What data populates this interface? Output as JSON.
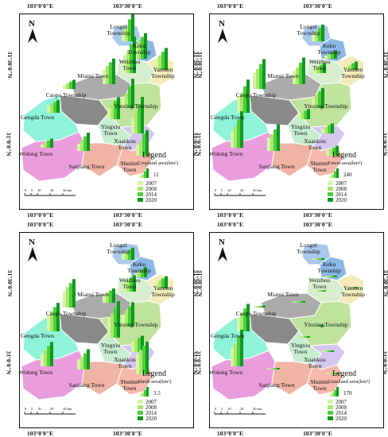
{
  "coordinates": {
    "lon_left": "103°0'0\"E",
    "lon_right": "103°30'0\"E",
    "lat_top": "31°30'0\"N",
    "lat_bottom": "31°0'0\"N"
  },
  "north_label": "N",
  "scale_bar": {
    "ticks": [
      "0",
      "5",
      "10",
      "20",
      "30 km"
    ]
  },
  "legend_years": [
    "2007",
    "2008",
    "2014",
    "2020"
  ],
  "panels": [
    {
      "legend_title": "Legend",
      "legend_subtitle": "Cropland area(km²)",
      "legend_value": "11",
      "towns": [
        {
          "name": "Longxi Township",
          "values": [
            3.0,
            4.0,
            6.0,
            8.0
          ]
        },
        {
          "name": "Keku Township",
          "values": [
            4.0,
            5.0,
            6.0,
            7.0
          ]
        },
        {
          "name": "Weizhou Town",
          "values": [
            5.0,
            6.0,
            8.0,
            10.0
          ]
        },
        {
          "name": "Yanmen Township",
          "values": [
            3.0,
            4.0,
            5.0,
            6.0
          ]
        },
        {
          "name": "Miansi Town",
          "values": [
            4.0,
            5.0,
            6.0,
            7.0
          ]
        },
        {
          "name": "Caopo Township",
          "values": [
            1.0,
            1.5,
            2.0,
            2.5
          ]
        },
        {
          "name": "Yinxing Township",
          "values": [
            3.0,
            4.0,
            6.0,
            8.0
          ]
        },
        {
          "name": "Gengda Town",
          "values": [
            2.0,
            2.5,
            3.0,
            3.5
          ]
        },
        {
          "name": "Yingxiu Town",
          "values": [
            3.0,
            4.0,
            5.0,
            6.0
          ]
        },
        {
          "name": "Xuankou Town",
          "values": [
            4.0,
            6.0,
            8.0,
            10.0
          ]
        },
        {
          "name": "Wolong Town",
          "values": [
            1.0,
            1.5,
            2.0,
            2.5
          ]
        },
        {
          "name": "Sanjiang Town",
          "values": [
            2.0,
            3.0,
            4.0,
            5.0
          ]
        },
        {
          "name": "Shuimo Town",
          "values": [
            3.0,
            4.0,
            6.0,
            7.0
          ]
        }
      ]
    },
    {
      "legend_title": "Legend",
      "legend_subtitle": "Forest area(km²)",
      "legend_value": "240",
      "towns": [
        {
          "name": "Longxi Township",
          "values": [
            40,
            60,
            80,
            100
          ]
        },
        {
          "name": "Keku Township",
          "values": [
            20,
            30,
            40,
            50
          ]
        },
        {
          "name": "Weizhou Town",
          "values": [
            30,
            40,
            50,
            60
          ]
        },
        {
          "name": "Yanmen Township",
          "values": [
            20,
            30,
            40,
            50
          ]
        },
        {
          "name": "Miansi Town",
          "values": [
            80,
            100,
            130,
            160
          ]
        },
        {
          "name": "Caopo Township",
          "values": [
            100,
            120,
            150,
            180
          ]
        },
        {
          "name": "Yinxing Township",
          "values": [
            60,
            80,
            100,
            120
          ]
        },
        {
          "name": "Gengda Town",
          "values": [
            100,
            120,
            160,
            200
          ]
        },
        {
          "name": "Yingxiu Town",
          "values": [
            30,
            40,
            50,
            60
          ]
        },
        {
          "name": "Xuankou Town",
          "values": [
            30,
            40,
            50,
            60
          ]
        },
        {
          "name": "Wolong Town",
          "values": [
            100,
            130,
            170,
            220
          ]
        },
        {
          "name": "Sanjiang Town",
          "values": [
            80,
            100,
            130,
            160
          ]
        },
        {
          "name": "Shuimo Town",
          "values": [
            30,
            40,
            50,
            60
          ]
        }
      ]
    },
    {
      "legend_title": "Legend",
      "legend_subtitle": "Shrub area(km²)",
      "legend_value": "3.5",
      "towns": [
        {
          "name": "Longxi Township",
          "values": [
            0.3,
            0.4,
            0.5,
            0.6
          ]
        },
        {
          "name": "Keku Township",
          "values": [
            0.2,
            0.3,
            0.4,
            0.5
          ]
        },
        {
          "name": "Weizhou Town",
          "values": [
            0.5,
            0.6,
            0.7,
            0.8
          ]
        },
        {
          "name": "Yanmen Township",
          "values": [
            0.3,
            0.4,
            0.5,
            0.6
          ]
        },
        {
          "name": "Miansi Town",
          "values": [
            0.4,
            0.5,
            0.6,
            0.7
          ]
        },
        {
          "name": "Caopo Township",
          "values": [
            0.8,
            1.0,
            1.2,
            1.4
          ]
        },
        {
          "name": "Yinxing Township",
          "values": [
            0.6,
            0.8,
            1.0,
            1.2
          ]
        },
        {
          "name": "Gengda Town",
          "values": [
            0.8,
            1.0,
            1.2,
            1.4
          ]
        },
        {
          "name": "Yingxiu Town",
          "values": [
            1.0,
            1.2,
            1.5,
            1.8
          ]
        },
        {
          "name": "Xuankou Town",
          "values": [
            0.5,
            0.6,
            0.7,
            0.8
          ]
        },
        {
          "name": "Wolong Town",
          "values": [
            0.6,
            0.8,
            1.0,
            1.2
          ]
        },
        {
          "name": "Sanjiang Town",
          "values": [
            0.5,
            0.6,
            0.8,
            1.0
          ]
        },
        {
          "name": "Shuimo Town",
          "values": [
            1.0,
            1.2,
            1.4,
            1.6
          ]
        }
      ]
    },
    {
      "legend_title": "Legend",
      "legend_subtitle": "Grassland area(km²)",
      "legend_value": "170",
      "towns": [
        {
          "name": "Longxi Township",
          "values": [
            5,
            6,
            7,
            8
          ]
        },
        {
          "name": "Keku Township",
          "values": [
            5,
            6,
            7,
            8
          ]
        },
        {
          "name": "Weizhou Town",
          "values": [
            3,
            4,
            5,
            6
          ]
        },
        {
          "name": "Yanmen Township",
          "values": [
            3,
            4,
            5,
            6
          ]
        },
        {
          "name": "Miansi Town",
          "values": [
            4,
            5,
            6,
            7
          ]
        },
        {
          "name": "Caopo Township",
          "values": [
            5,
            6,
            7,
            8
          ]
        },
        {
          "name": "Yinxing Township",
          "values": [
            5,
            6,
            7,
            8
          ]
        },
        {
          "name": "Gengda Town",
          "values": [
            60,
            80,
            100,
            120
          ]
        },
        {
          "name": "Yingxiu Town",
          "values": [
            4,
            5,
            6,
            7
          ]
        },
        {
          "name": "Xuankou Town",
          "values": [
            4,
            5,
            6,
            7
          ]
        },
        {
          "name": "Wolong Town",
          "values": [
            80,
            100,
            130,
            160
          ]
        },
        {
          "name": "Sanjiang Town",
          "values": [
            4,
            5,
            6,
            7
          ]
        },
        {
          "name": "Shuimo Town",
          "values": [
            4,
            5,
            6,
            7
          ]
        }
      ]
    }
  ],
  "colors": {
    "bar_years": [
      "#d7f5a5",
      "#a8e86a",
      "#4ccd3c",
      "#0f9a1e"
    ],
    "regions": {
      "Longxi Township": "#a9c8ec",
      "Keku Township": "#8ab8e6",
      "Weizhou Town": "#d8efcf",
      "Yanmen Township": "#f4ebb8",
      "Miansi Town": "#ababab",
      "Caopo Township": "#8a8a8a",
      "Yinxing Township": "#bfe39c",
      "Gengda Town": "#8ef3d8",
      "Yingxiu Town": "#c7ecd0",
      "Xuankou Town": "#d5c6ee",
      "Wolong Town": "#ea9ddd",
      "Sanjiang Town": "#f0b4a4",
      "Shuimo Town": "#f5b8ab"
    }
  }
}
